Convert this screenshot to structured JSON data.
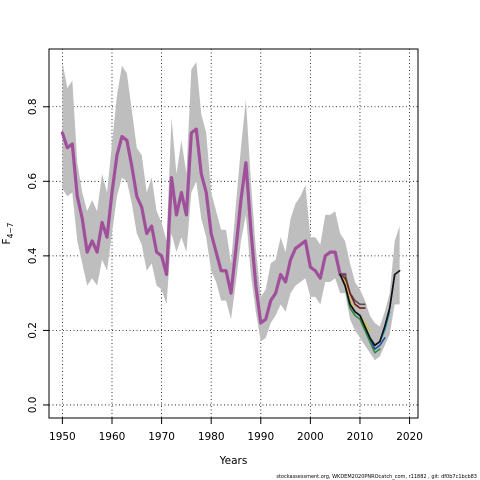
{
  "chart_data": {
    "type": "line",
    "title": "",
    "xlabel": "Years",
    "ylabel_main": "F",
    "ylabel_sub": "4−7",
    "xlim": [
      1947.3,
      2021.7
    ],
    "ylim": [
      -0.035,
      0.955
    ],
    "xticks": [
      1950,
      1960,
      1970,
      1980,
      1990,
      2000,
      2010,
      2020
    ],
    "yticks": [
      0.0,
      0.2,
      0.4,
      0.6,
      0.8
    ],
    "ytick_labels": [
      "0.0",
      "0.2",
      "0.4",
      "0.6",
      "0.8"
    ],
    "grid": true,
    "grid_style": "dotted",
    "band_color": "#bebebe",
    "band": {
      "x": [
        1950,
        1951,
        1952,
        1953,
        1954,
        1955,
        1956,
        1957,
        1958,
        1959,
        1960,
        1961,
        1962,
        1963,
        1964,
        1965,
        1966,
        1967,
        1968,
        1969,
        1970,
        1971,
        1972,
        1973,
        1974,
        1975,
        1976,
        1977,
        1978,
        1979,
        1980,
        1981,
        1982,
        1983,
        1984,
        1985,
        1986,
        1987,
        1988,
        1989,
        1990,
        1991,
        1992,
        1993,
        1994,
        1995,
        1996,
        1997,
        1998,
        1999,
        2000,
        2001,
        2002,
        2003,
        2004,
        2005,
        2006,
        2007,
        2008,
        2009,
        2010,
        2011,
        2012,
        2013,
        2014,
        2015,
        2016,
        2017,
        2018
      ],
      "lower": [
        0.58,
        0.56,
        0.57,
        0.44,
        0.38,
        0.32,
        0.34,
        0.32,
        0.39,
        0.36,
        0.46,
        0.56,
        0.61,
        0.6,
        0.54,
        0.46,
        0.43,
        0.36,
        0.38,
        0.32,
        0.31,
        0.27,
        0.46,
        0.41,
        0.45,
        0.41,
        0.57,
        0.6,
        0.5,
        0.45,
        0.36,
        0.33,
        0.28,
        0.28,
        0.23,
        0.33,
        0.44,
        0.51,
        0.35,
        0.25,
        0.17,
        0.18,
        0.22,
        0.24,
        0.27,
        0.25,
        0.3,
        0.32,
        0.33,
        0.34,
        0.29,
        0.29,
        0.27,
        0.33,
        0.33,
        0.34,
        0.3,
        0.3,
        0.23,
        0.2,
        0.18,
        0.16,
        0.14,
        0.12,
        0.13,
        0.16,
        0.19,
        0.27,
        0.27
      ],
      "upper": [
        0.92,
        0.85,
        0.87,
        0.65,
        0.57,
        0.52,
        0.55,
        0.52,
        0.62,
        0.57,
        0.7,
        0.83,
        0.91,
        0.89,
        0.79,
        0.69,
        0.67,
        0.57,
        0.61,
        0.52,
        0.49,
        0.44,
        0.77,
        0.62,
        0.71,
        0.62,
        0.9,
        0.92,
        0.78,
        0.73,
        0.57,
        0.52,
        0.47,
        0.47,
        0.38,
        0.54,
        0.69,
        0.82,
        0.6,
        0.42,
        0.29,
        0.31,
        0.38,
        0.39,
        0.45,
        0.41,
        0.5,
        0.54,
        0.56,
        0.59,
        0.45,
        0.45,
        0.43,
        0.51,
        0.51,
        0.52,
        0.46,
        0.44,
        0.38,
        0.33,
        0.31,
        0.28,
        0.24,
        0.22,
        0.21,
        0.25,
        0.3,
        0.44,
        0.48
      ]
    },
    "series": [
      {
        "color": "#a0509a",
        "x": [
          1950,
          1951,
          1952,
          1953,
          1954,
          1955,
          1956,
          1957,
          1958,
          1959,
          1960,
          1961,
          1962,
          1963,
          1964,
          1965,
          1966,
          1967,
          1968,
          1969,
          1970,
          1971,
          1972,
          1973,
          1974,
          1975,
          1976,
          1977,
          1978,
          1979,
          1980,
          1981,
          1982,
          1983,
          1984,
          1985,
          1986,
          1987,
          1988,
          1989,
          1990,
          1991,
          1992,
          1993,
          1994,
          1995,
          1996,
          1997,
          1998,
          1999,
          2000,
          2001,
          2002,
          2003,
          2004,
          2005,
          2006,
          2007
        ],
        "values": [
          0.73,
          0.69,
          0.7,
          0.56,
          0.5,
          0.41,
          0.44,
          0.41,
          0.49,
          0.45,
          0.57,
          0.67,
          0.72,
          0.71,
          0.64,
          0.56,
          0.53,
          0.46,
          0.48,
          0.41,
          0.4,
          0.35,
          0.61,
          0.51,
          0.57,
          0.51,
          0.73,
          0.74,
          0.62,
          0.57,
          0.46,
          0.41,
          0.36,
          0.36,
          0.3,
          0.42,
          0.55,
          0.65,
          0.47,
          0.32,
          0.22,
          0.23,
          0.28,
          0.3,
          0.35,
          0.33,
          0.39,
          0.42,
          0.43,
          0.44,
          0.37,
          0.36,
          0.34,
          0.4,
          0.41,
          0.41,
          0.35,
          0.35
        ]
      },
      {
        "color": "#555555",
        "x": [
          2006,
          2007,
          2008,
          2009,
          2010,
          2011
        ],
        "values": [
          0.35,
          0.35,
          0.3,
          0.28,
          0.27,
          0.27
        ]
      },
      {
        "color": "#7a1d1d",
        "x": [
          2006,
          2007,
          2008,
          2009,
          2010,
          2011
        ],
        "values": [
          0.35,
          0.34,
          0.3,
          0.27,
          0.26,
          0.26
        ]
      },
      {
        "color": "#d4c14a",
        "x": [
          2006,
          2007,
          2008,
          2009,
          2010,
          2011,
          2012
        ],
        "values": [
          0.35,
          0.33,
          0.28,
          0.25,
          0.24,
          0.22,
          0.2
        ]
      },
      {
        "color": "#2e8b3a",
        "x": [
          2006,
          2007,
          2008,
          2009,
          2010,
          2011,
          2012,
          2013,
          2014
        ],
        "values": [
          0.35,
          0.32,
          0.26,
          0.24,
          0.23,
          0.2,
          0.17,
          0.14,
          0.15
        ]
      },
      {
        "color": "#1f4fa0",
        "x": [
          2006,
          2007,
          2008,
          2009,
          2010,
          2011,
          2012,
          2013,
          2014,
          2015
        ],
        "values": [
          0.35,
          0.32,
          0.27,
          0.25,
          0.24,
          0.21,
          0.18,
          0.15,
          0.16,
          0.18
        ]
      },
      {
        "color": "#27a3b5",
        "x": [
          2006,
          2007,
          2008,
          2009,
          2010,
          2011,
          2012,
          2013,
          2014,
          2015,
          2016
        ],
        "values": [
          0.35,
          0.32,
          0.27,
          0.25,
          0.24,
          0.21,
          0.18,
          0.16,
          0.17,
          0.2,
          0.25
        ]
      },
      {
        "color": "#3c3a8c",
        "x": [
          2006,
          2007,
          2008,
          2009,
          2010,
          2011,
          2012,
          2013,
          2014,
          2015,
          2016,
          2017
        ],
        "values": [
          0.35,
          0.32,
          0.27,
          0.25,
          0.24,
          0.21,
          0.18,
          0.16,
          0.17,
          0.21,
          0.26,
          0.35
        ]
      },
      {
        "color": "#111111",
        "x": [
          2006,
          2007,
          2008,
          2009,
          2010,
          2011,
          2012,
          2013,
          2014,
          2015,
          2016,
          2017,
          2018
        ],
        "values": [
          0.35,
          0.32,
          0.27,
          0.25,
          0.24,
          0.21,
          0.18,
          0.16,
          0.17,
          0.21,
          0.26,
          0.35,
          0.36
        ]
      }
    ]
  },
  "footer": {
    "watermark": "stockassessment.org, WKDEM2020PNROcatch_com, r11882 , git: df0b7c1bcb83"
  }
}
